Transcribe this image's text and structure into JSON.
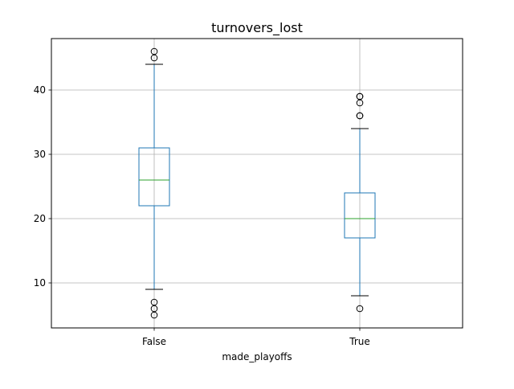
{
  "chart_data": {
    "type": "box",
    "title": "turnovers_lost",
    "xlabel": "made_playoffs",
    "ylabel": "",
    "categories": [
      "False",
      "True"
    ],
    "ylim": [
      3,
      48
    ],
    "yticks": [
      10,
      20,
      30,
      40
    ],
    "grid": true,
    "boxes": [
      {
        "category": "False",
        "whisker_low": 9,
        "q1": 22,
        "median": 26,
        "q3": 31,
        "whisker_high": 44,
        "outliers": [
          5,
          6,
          7,
          45,
          46
        ]
      },
      {
        "category": "True",
        "whisker_low": 8,
        "q1": 17,
        "median": 20,
        "q3": 24,
        "whisker_high": 34,
        "outliers": [
          6,
          36,
          36,
          38,
          39,
          39
        ]
      }
    ],
    "colors": {
      "box": "#1f77b4",
      "median": "#2ca02c",
      "whisker_cap": "#000000",
      "outlier": "#000000",
      "grid": "#b0b0b0"
    }
  }
}
